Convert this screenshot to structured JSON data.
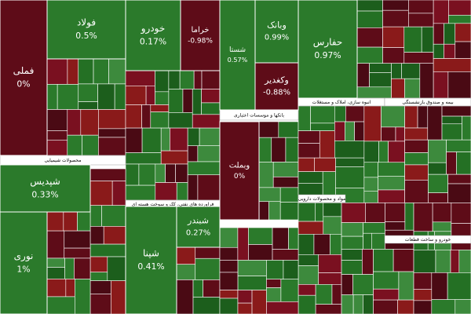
{
  "chart_data": {
    "type": "treemap",
    "colors": {
      "up": "#2b7a2b",
      "down": "#5e0c18"
    },
    "sectors": [
      "محصولات شیمیایی",
      "فراورده های نفتی، کک و سوخت هسته ای",
      "بانکها و موسسات اعتباری",
      "انبوه سازی، املاک و مستغلات",
      "بیمه و صندوق بازنشستگی",
      "مواد و محصولات دارویی",
      "خودرو و ساخت قطعات"
    ],
    "categories": [
      "فملی",
      "فولاد",
      "خودرو",
      "خراما",
      "شستا",
      "وبانک",
      "وکغدیر",
      "حفارس",
      "وبملت",
      "شپدیس",
      "نوری",
      "شپنا",
      "شبندر"
    ],
    "values": [
      0,
      0.5,
      0.17,
      -0.98,
      0.57,
      0.99,
      -0.88,
      0.97,
      0,
      0.33,
      1,
      0.41,
      0.27
    ],
    "value_labels": [
      "0%",
      "0.5%",
      "0.17%",
      "-0.98%",
      "0.57%",
      "0.99%",
      "-0.88%",
      "0.97%",
      "0%",
      "0.33%",
      "1%",
      "0.41%",
      "0.27%"
    ]
  }
}
